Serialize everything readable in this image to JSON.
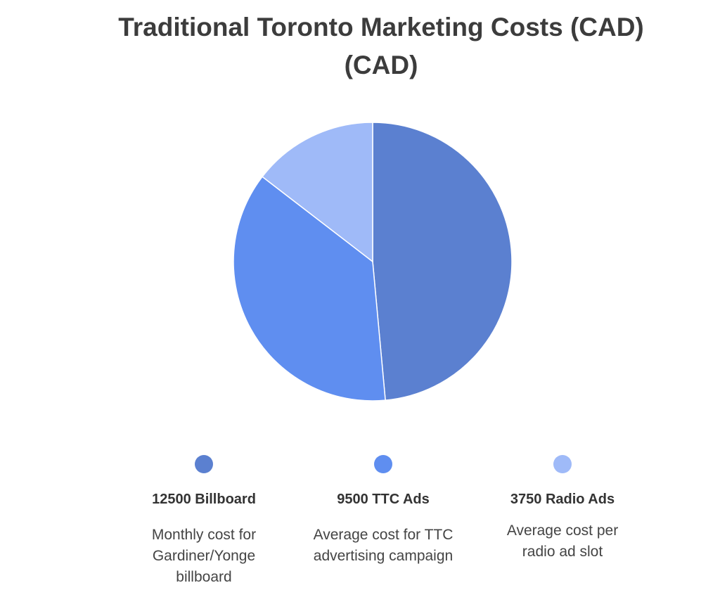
{
  "chart_data": {
    "type": "pie",
    "title": "Traditional Toronto Marketing Costs (CAD) (CAD)",
    "categories": [
      "12500 Billboard",
      "9500 TTC Ads",
      "3750 Radio Ads"
    ],
    "values": [
      12500,
      9500,
      3750
    ],
    "descriptions": [
      "Monthly cost for Gardiner/Yonge billboard",
      "Average cost for TTC advertising campaign",
      "Average cost per radio ad slot"
    ],
    "colors": [
      "#5b80d0",
      "#5f8ef0",
      "#9fbaf8"
    ]
  }
}
